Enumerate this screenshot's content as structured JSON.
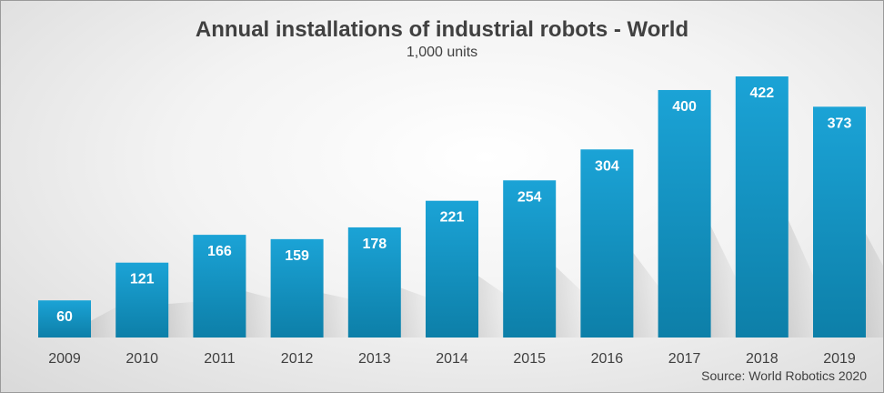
{
  "chart_data": {
    "type": "bar",
    "title": "Annual installations of industrial robots - World",
    "subtitle": "1,000 units",
    "categories": [
      "2009",
      "2010",
      "2011",
      "2012",
      "2013",
      "2014",
      "2015",
      "2016",
      "2017",
      "2018",
      "2019"
    ],
    "values": [
      60,
      121,
      166,
      159,
      178,
      221,
      254,
      304,
      400,
      422,
      373
    ],
    "ylim": [
      0,
      422
    ],
    "grid": false,
    "source": "Source: World Robotics 2020",
    "bar_color_top": "#1ba3d6",
    "bar_color_bottom": "#0d7fa8",
    "label_color": "#ffffff"
  }
}
